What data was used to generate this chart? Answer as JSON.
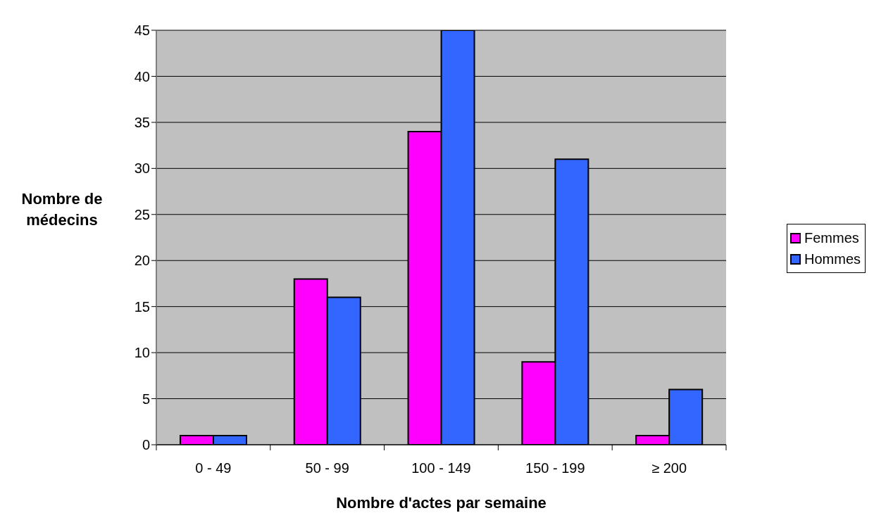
{
  "chart_data": {
    "type": "bar",
    "xlabel": "Nombre d'actes par semaine",
    "ylabel": "Nombre de médecins",
    "categories": [
      "0 - 49",
      "50 - 99",
      "100 - 149",
      "150 - 199",
      "≥ 200"
    ],
    "series": [
      {
        "name": "Femmes",
        "color": "#ff00ff",
        "values": [
          1,
          18,
          34,
          9,
          1
        ]
      },
      {
        "name": "Hommes",
        "color": "#3366ff",
        "values": [
          1,
          16,
          45,
          31,
          6
        ]
      }
    ],
    "ylim": [
      0,
      45
    ],
    "yticks": [
      0,
      5,
      10,
      15,
      20,
      25,
      30,
      35,
      40,
      45
    ],
    "grid": "y",
    "legend": "right"
  }
}
